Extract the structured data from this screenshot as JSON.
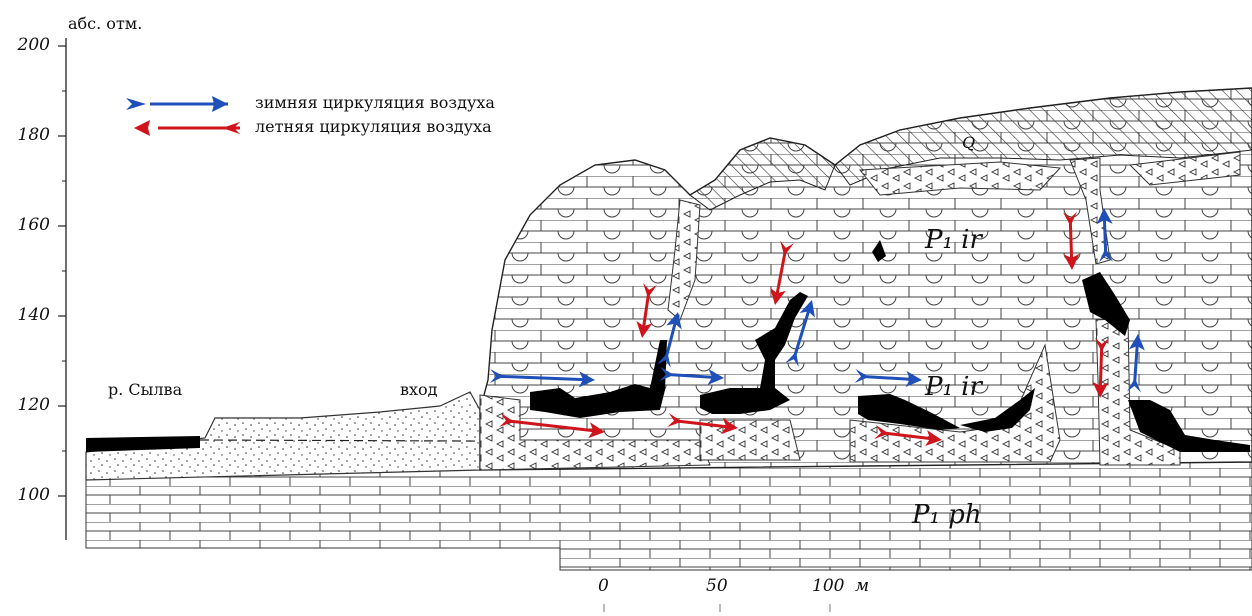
{
  "axis": {
    "title": "абс. отм.",
    "ticks": [
      "200",
      "180",
      "160",
      "140",
      "120",
      "100"
    ]
  },
  "legend": {
    "winter": "зимняя циркуляция воздуха",
    "summer": "летняя циркуляция воздуха"
  },
  "labels": {
    "river": "р. Сылва",
    "entrance": "вход",
    "quaternary": "Q",
    "formation_upper": "P₁ ir",
    "formation_middle": "P₁ ir",
    "formation_lower": "P₁ ph"
  },
  "scale": {
    "ticks": [
      "0",
      "50",
      "100"
    ],
    "unit": "м"
  },
  "colors": {
    "winter_arrow": "#1f4fb8",
    "summer_arrow": "#d0141b",
    "cave_fill": "#000000",
    "line": "#222222"
  }
}
